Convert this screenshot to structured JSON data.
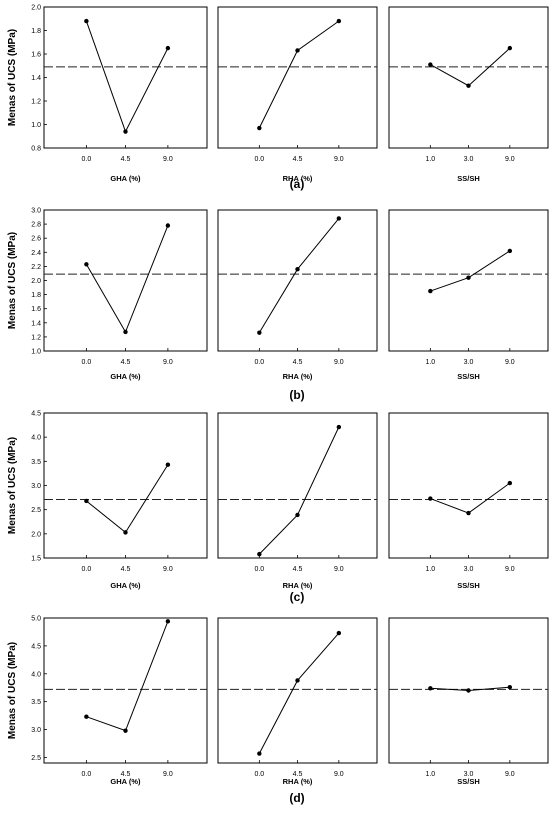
{
  "chart_data": [
    {
      "type": "line",
      "panel_label": "(a)",
      "ylabel": "Menas of UCS (MPa)",
      "ylim": [
        0.8,
        2.0
      ],
      "yticks": [
        "0.8",
        "1.0",
        "1.2",
        "1.4",
        "1.6",
        "1.8",
        "2.0"
      ],
      "mean_line": 1.49,
      "subplots": [
        {
          "xlabel": "GHA (%)",
          "categories": [
            "0.0",
            "4.5",
            "9.0"
          ],
          "values": [
            1.88,
            0.94,
            1.65
          ]
        },
        {
          "xlabel": "RHA (%)",
          "categories": [
            "0.0",
            "4.5",
            "9.0"
          ],
          "values": [
            0.97,
            1.63,
            1.88
          ]
        },
        {
          "xlabel": "SS/SH",
          "categories": [
            "1.0",
            "3.0",
            "9.0"
          ],
          "values": [
            1.51,
            1.33,
            1.65
          ]
        }
      ]
    },
    {
      "type": "line",
      "panel_label": "(b)",
      "ylabel": "Menas of UCS (MPa)",
      "ylim": [
        1.0,
        3.0
      ],
      "yticks": [
        "1.0",
        "1.2",
        "1.4",
        "1.6",
        "1.8",
        "2.0",
        "2.2",
        "2.4",
        "2.6",
        "2.8",
        "3.0"
      ],
      "mean_line": 2.09,
      "subplots": [
        {
          "xlabel": "GHA (%)",
          "categories": [
            "0.0",
            "4.5",
            "9.0"
          ],
          "values": [
            2.23,
            1.27,
            2.78
          ]
        },
        {
          "xlabel": "RHA (%)",
          "categories": [
            "0.0",
            "4.5",
            "9.0"
          ],
          "values": [
            1.26,
            2.16,
            2.88
          ]
        },
        {
          "xlabel": "SS/SH",
          "categories": [
            "1.0",
            "3.0",
            "9.0"
          ],
          "values": [
            1.85,
            2.04,
            2.42
          ]
        }
      ]
    },
    {
      "type": "line",
      "panel_label": "(c)",
      "ylabel": "Menas of UCS (MPa)",
      "ylim": [
        1.5,
        4.5
      ],
      "yticks": [
        "1.5",
        "2.0",
        "2.5",
        "3.0",
        "3.5",
        "4.0",
        "4.5"
      ],
      "mean_line": 2.71,
      "subplots": [
        {
          "xlabel": "GHA (%)",
          "categories": [
            "0.0",
            "4.5",
            "9.0"
          ],
          "values": [
            2.68,
            2.03,
            3.43
          ]
        },
        {
          "xlabel": "RHA (%)",
          "categories": [
            "0.0",
            "4.5",
            "9.0"
          ],
          "values": [
            1.58,
            2.39,
            4.21
          ]
        },
        {
          "xlabel": "SS/SH",
          "categories": [
            "1.0",
            "3.0",
            "9.0"
          ],
          "values": [
            2.73,
            2.43,
            3.05
          ]
        }
      ]
    },
    {
      "type": "line",
      "panel_label": "(d)",
      "ylabel": "Menas of UCS (MPa)",
      "ylim": [
        2.4,
        5.0
      ],
      "yticks": [
        "2.5",
        "3.0",
        "3.5",
        "4.0",
        "4.5",
        "5.0"
      ],
      "mean_line": 3.72,
      "subplots": [
        {
          "xlabel": "GHA (%)",
          "categories": [
            "0.0",
            "4.5",
            "9.0"
          ],
          "values": [
            3.23,
            2.98,
            4.94
          ]
        },
        {
          "xlabel": "RHA (%)",
          "categories": [
            "0.0",
            "4.5",
            "9.0"
          ],
          "values": [
            2.57,
            3.88,
            4.73
          ]
        },
        {
          "xlabel": "SS/SH",
          "categories": [
            "1.0",
            "3.0",
            "9.0"
          ],
          "values": [
            3.74,
            3.7,
            3.76
          ]
        }
      ]
    }
  ]
}
